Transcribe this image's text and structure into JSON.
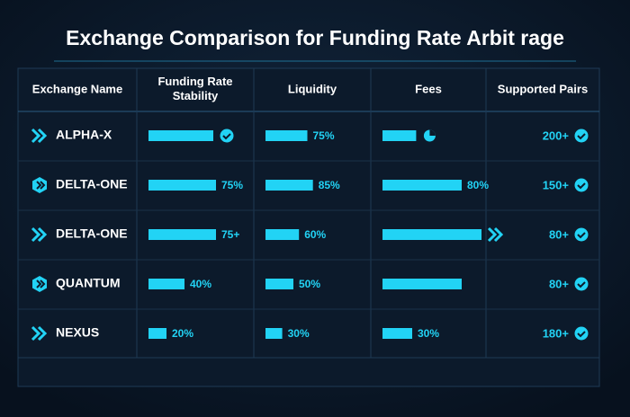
{
  "title": "Exchange Comparison for Funding Rate Arbit rage",
  "table": {
    "columns": [
      "Exchange Name",
      "Funding Rate Stability",
      "Liquidity",
      "Fees",
      "Supported Pairs"
    ],
    "rows": [
      {
        "name": "ALPHA-X",
        "icon": "arrows",
        "funding": {
          "value": 72,
          "marker": "check"
        },
        "liquidity": {
          "value": 75,
          "label": "75%"
        },
        "fees": {
          "value": 34,
          "marker": "pie"
        },
        "pairs": "200+"
      },
      {
        "name": "DELTA-ONE",
        "icon": "hex",
        "funding": {
          "value": 75,
          "label": "75%"
        },
        "liquidity": {
          "value": 85,
          "label": "85%"
        },
        "fees": {
          "value": 80,
          "label": "80%"
        },
        "pairs": "150+"
      },
      {
        "name": "DELTA-ONE",
        "icon": "arrows",
        "funding": {
          "value": 75,
          "label": "75+"
        },
        "liquidity": {
          "value": 60,
          "label": "60%"
        },
        "fees": {
          "value": 100,
          "marker": "arrows"
        },
        "pairs": "80+"
      },
      {
        "name": "QUANTUM",
        "icon": "hex",
        "funding": {
          "value": 40,
          "label": "40%"
        },
        "liquidity": {
          "value": 50,
          "label": "50%"
        },
        "fees": {
          "value": 80
        },
        "pairs": "80+"
      },
      {
        "name": "NEXUS",
        "icon": "arrows",
        "funding": {
          "value": 20,
          "label": "20%"
        },
        "liquidity": {
          "value": 30,
          "label": "30%"
        },
        "fees": {
          "value": 30,
          "label": "30%"
        },
        "pairs": "180+"
      }
    ]
  }
}
